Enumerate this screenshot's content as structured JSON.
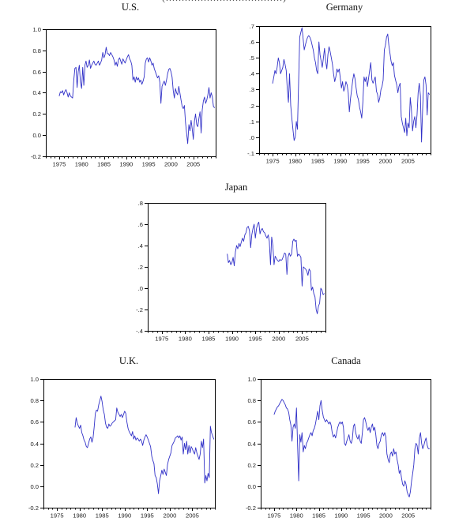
{
  "figure": {
    "top_caption_fragment": "(.....................................)"
  },
  "chart_data": [
    {
      "key": "us",
      "type": "line",
      "title": "U.S.",
      "ylim": [
        -0.2,
        1.0
      ],
      "yticks": [
        1.0,
        0.8,
        0.6,
        0.4,
        0.2,
        0.0,
        -0.2
      ],
      "ytick_labels": [
        "1.0",
        "0.8",
        "0.6",
        "0.4",
        "0.2",
        "0.0",
        "-0.2"
      ],
      "xlim": [
        1972,
        2010
      ],
      "xticks": [
        1975,
        1980,
        1985,
        1990,
        1995,
        2000,
        2005
      ],
      "xtick_labels": [
        "1975",
        "1980",
        "1985",
        "1990",
        "1995",
        "2000",
        "2005"
      ],
      "x_minor_step": 1,
      "grid": false,
      "line_color": "#3232c8",
      "series": {
        "name": "U.S.",
        "x_start": 1975.0,
        "dx": 0.25,
        "values": [
          0.37,
          0.41,
          0.4,
          0.42,
          0.38,
          0.41,
          0.43,
          0.4,
          0.36,
          0.4,
          0.37,
          0.36,
          0.35,
          0.52,
          0.63,
          0.64,
          0.45,
          0.6,
          0.66,
          0.5,
          0.44,
          0.64,
          0.47,
          0.66,
          0.7,
          0.64,
          0.66,
          0.71,
          0.63,
          0.66,
          0.68,
          0.7,
          0.67,
          0.66,
          0.68,
          0.7,
          0.66,
          0.68,
          0.71,
          0.78,
          0.73,
          0.76,
          0.83,
          0.77,
          0.77,
          0.75,
          0.78,
          0.76,
          0.74,
          0.71,
          0.66,
          0.69,
          0.65,
          0.71,
          0.73,
          0.7,
          0.67,
          0.72,
          0.7,
          0.68,
          0.71,
          0.74,
          0.76,
          0.72,
          0.7,
          0.66,
          0.52,
          0.55,
          0.5,
          0.55,
          0.52,
          0.54,
          0.5,
          0.52,
          0.48,
          0.51,
          0.55,
          0.68,
          0.72,
          0.73,
          0.69,
          0.73,
          0.7,
          0.66,
          0.68,
          0.63,
          0.6,
          0.57,
          0.54,
          0.56,
          0.5,
          0.3,
          0.46,
          0.49,
          0.51,
          0.47,
          0.52,
          0.58,
          0.62,
          0.63,
          0.6,
          0.55,
          0.42,
          0.35,
          0.44,
          0.4,
          0.38,
          0.46,
          0.4,
          0.33,
          0.27,
          0.25,
          0.28,
          0.12,
          0.02,
          -0.08,
          0.1,
          0.04,
          0.14,
          0.06,
          -0.04,
          0.13,
          0.2,
          0.1,
          0.08,
          0.16,
          0.22,
          0.02,
          0.24,
          0.32,
          0.36,
          0.3,
          0.33,
          0.38,
          0.45,
          0.35,
          0.4,
          0.36,
          0.27,
          0.26
        ]
      }
    },
    {
      "key": "germany",
      "type": "line",
      "title": "Germany",
      "ylim": [
        -0.1,
        0.7
      ],
      "yticks": [
        0.7,
        0.6,
        0.5,
        0.4,
        0.3,
        0.2,
        0.1,
        0.0,
        -0.1
      ],
      "ytick_labels": [
        ".7",
        ".6",
        ".5",
        ".4",
        ".3",
        ".2",
        ".1",
        ".0",
        "-.1"
      ],
      "xlim": [
        1972,
        2010
      ],
      "xticks": [
        1975,
        1980,
        1985,
        1990,
        1995,
        2000,
        2005
      ],
      "xtick_labels": [
        "1975",
        "1980",
        "1985",
        "1990",
        "1995",
        "2000",
        "2005"
      ],
      "x_minor_step": 1,
      "grid": false,
      "line_color": "#3232c8",
      "series": {
        "name": "Germany",
        "x_start": 1975.0,
        "dx": 0.25,
        "values": [
          0.34,
          0.38,
          0.42,
          0.4,
          0.44,
          0.5,
          0.47,
          0.4,
          0.42,
          0.44,
          0.49,
          0.46,
          0.42,
          0.3,
          0.22,
          0.4,
          0.2,
          0.12,
          0.05,
          -0.02,
          0.0,
          0.1,
          0.05,
          0.35,
          0.63,
          0.66,
          0.69,
          0.62,
          0.55,
          0.58,
          0.61,
          0.63,
          0.64,
          0.63,
          0.61,
          0.58,
          0.55,
          0.5,
          0.47,
          0.42,
          0.4,
          0.6,
          0.52,
          0.48,
          0.44,
          0.5,
          0.56,
          0.48,
          0.43,
          0.52,
          0.57,
          0.54,
          0.5,
          0.46,
          0.4,
          0.35,
          0.38,
          0.43,
          0.41,
          0.43,
          0.37,
          0.31,
          0.35,
          0.29,
          0.31,
          0.35,
          0.33,
          0.28,
          0.16,
          0.24,
          0.3,
          0.36,
          0.4,
          0.37,
          0.31,
          0.26,
          0.24,
          0.19,
          0.16,
          0.12,
          0.22,
          0.38,
          0.35,
          0.38,
          0.32,
          0.37,
          0.42,
          0.47,
          0.36,
          0.34,
          0.36,
          0.38,
          0.29,
          0.27,
          0.22,
          0.25,
          0.3,
          0.32,
          0.36,
          0.55,
          0.58,
          0.63,
          0.65,
          0.58,
          0.53,
          0.48,
          0.45,
          0.47,
          0.39,
          0.36,
          0.33,
          0.28,
          0.32,
          0.34,
          0.13,
          0.09,
          0.06,
          0.03,
          0.12,
          0.01,
          0.09,
          0.06,
          0.25,
          0.18,
          0.04,
          0.1,
          0.13,
          0.06,
          0.14,
          0.28,
          0.34,
          0.26,
          -0.03,
          0.18,
          0.36,
          0.38,
          0.33,
          0.14,
          0.28,
          0.27
        ]
      }
    },
    {
      "key": "japan",
      "type": "line",
      "title": "Japan",
      "ylim": [
        -0.4,
        0.8
      ],
      "yticks": [
        0.8,
        0.6,
        0.4,
        0.2,
        0.0,
        -0.2,
        -0.4
      ],
      "ytick_labels": [
        ".8",
        ".6",
        ".4",
        ".2",
        ".0",
        "-.2",
        "-.4"
      ],
      "xlim": [
        1972,
        2010
      ],
      "xticks": [
        1975,
        1980,
        1985,
        1990,
        1995,
        2000,
        2005
      ],
      "xtick_labels": [
        "1975",
        "1980",
        "1985",
        "1990",
        "1995",
        "2000",
        "2005"
      ],
      "x_minor_step": 1,
      "grid": false,
      "line_color": "#3232c8",
      "series": {
        "name": "Japan",
        "x_start": 1989.0,
        "dx": 0.25,
        "values": [
          0.32,
          0.24,
          0.26,
          0.22,
          0.24,
          0.29,
          0.21,
          0.34,
          0.4,
          0.37,
          0.42,
          0.39,
          0.43,
          0.47,
          0.44,
          0.5,
          0.52,
          0.57,
          0.58,
          0.54,
          0.38,
          0.5,
          0.56,
          0.6,
          0.47,
          0.56,
          0.6,
          0.62,
          0.51,
          0.55,
          0.56,
          0.53,
          0.52,
          0.49,
          0.47,
          0.5,
          0.44,
          0.22,
          0.48,
          0.4,
          0.22,
          0.3,
          0.28,
          0.26,
          0.25,
          0.27,
          0.26,
          0.27,
          0.3,
          0.33,
          0.32,
          0.13,
          0.29,
          0.33,
          0.3,
          0.32,
          0.44,
          0.46,
          0.44,
          0.45,
          0.3,
          0.32,
          0.31,
          0.29,
          0.02,
          0.2,
          0.19,
          0.18,
          0.16,
          0.12,
          0.18,
          0.16,
          -0.02,
          0.01,
          -0.05,
          -0.08,
          -0.2,
          -0.24,
          -0.17,
          -0.14,
          0.0,
          -0.02,
          -0.06,
          -0.05
        ]
      }
    },
    {
      "key": "uk",
      "type": "line",
      "title": "U.K.",
      "ylim": [
        -0.2,
        1.0
      ],
      "yticks": [
        1.0,
        0.8,
        0.6,
        0.4,
        0.2,
        0.0,
        -0.2
      ],
      "ytick_labels": [
        "1.0",
        "0.8",
        "0.6",
        "0.4",
        "0.2",
        "0.0",
        "-0.2"
      ],
      "xlim": [
        1972,
        2010
      ],
      "xticks": [
        1975,
        1980,
        1985,
        1990,
        1995,
        2000,
        2005
      ],
      "xtick_labels": [
        "1975",
        "1980",
        "1985",
        "1990",
        "1995",
        "2000",
        "2005"
      ],
      "x_minor_step": 1,
      "grid": false,
      "line_color": "#3232c8",
      "series": {
        "name": "U.K.",
        "x_start": 1979.0,
        "dx": 0.25,
        "values": [
          0.55,
          0.64,
          0.59,
          0.56,
          0.54,
          0.57,
          0.5,
          0.47,
          0.43,
          0.41,
          0.37,
          0.36,
          0.4,
          0.44,
          0.46,
          0.41,
          0.45,
          0.55,
          0.68,
          0.71,
          0.7,
          0.76,
          0.8,
          0.84,
          0.79,
          0.71,
          0.67,
          0.59,
          0.55,
          0.54,
          0.58,
          0.56,
          0.57,
          0.59,
          0.6,
          0.61,
          0.62,
          0.73,
          0.69,
          0.67,
          0.65,
          0.67,
          0.64,
          0.67,
          0.7,
          0.68,
          0.6,
          0.54,
          0.51,
          0.49,
          0.47,
          0.51,
          0.44,
          0.47,
          0.43,
          0.45,
          0.44,
          0.42,
          0.44,
          0.42,
          0.38,
          0.43,
          0.46,
          0.48,
          0.46,
          0.43,
          0.4,
          0.37,
          0.28,
          0.24,
          0.21,
          0.1,
          0.08,
          0.02,
          -0.07,
          0.05,
          0.1,
          0.15,
          0.11,
          0.16,
          0.13,
          0.1,
          0.2,
          0.25,
          0.28,
          0.31,
          0.38,
          0.4,
          0.42,
          0.45,
          0.46,
          0.47,
          0.45,
          0.47,
          0.43,
          0.46,
          0.3,
          0.4,
          0.34,
          0.42,
          0.3,
          0.38,
          0.31,
          0.37,
          0.35,
          0.32,
          0.3,
          0.36,
          0.31,
          0.28,
          0.25,
          0.3,
          0.42,
          0.36,
          0.44,
          0.03,
          0.1,
          0.05,
          0.12,
          0.08,
          0.56,
          0.5,
          0.47,
          0.44
        ]
      }
    },
    {
      "key": "canada",
      "type": "line",
      "title": "Canada",
      "ylim": [
        -0.2,
        1.0
      ],
      "yticks": [
        1.0,
        0.8,
        0.6,
        0.4,
        0.2,
        0.0,
        -0.2
      ],
      "ytick_labels": [
        "1.0",
        "0.8",
        "0.6",
        "0.4",
        "0.2",
        "0.0",
        "-0.2"
      ],
      "xlim": [
        1972,
        2010
      ],
      "xticks": [
        1975,
        1980,
        1985,
        1990,
        1995,
        2000,
        2005
      ],
      "xtick_labels": [
        "1975",
        "1980",
        "1985",
        "1990",
        "1995",
        "2000",
        "2005"
      ],
      "x_minor_step": 1,
      "grid": false,
      "line_color": "#3232c8",
      "series": {
        "name": "Canada",
        "x_start": 1975.0,
        "dx": 0.25,
        "values": [
          0.67,
          0.7,
          0.72,
          0.74,
          0.75,
          0.77,
          0.79,
          0.81,
          0.8,
          0.78,
          0.76,
          0.73,
          0.72,
          0.69,
          0.62,
          0.57,
          0.42,
          0.55,
          0.58,
          0.54,
          0.73,
          0.38,
          0.05,
          0.48,
          0.41,
          0.5,
          0.32,
          0.38,
          0.35,
          0.4,
          0.42,
          0.45,
          0.48,
          0.5,
          0.47,
          0.52,
          0.54,
          0.58,
          0.64,
          0.7,
          0.62,
          0.75,
          0.8,
          0.71,
          0.65,
          0.62,
          0.6,
          0.62,
          0.6,
          0.58,
          0.6,
          0.57,
          0.5,
          0.46,
          0.48,
          0.45,
          0.5,
          0.55,
          0.58,
          0.6,
          0.58,
          0.6,
          0.55,
          0.4,
          0.38,
          0.42,
          0.45,
          0.48,
          0.42,
          0.4,
          0.44,
          0.56,
          0.58,
          0.5,
          0.46,
          0.44,
          0.48,
          0.42,
          0.4,
          0.5,
          0.62,
          0.64,
          0.6,
          0.55,
          0.52,
          0.55,
          0.5,
          0.55,
          0.58,
          0.52,
          0.55,
          0.48,
          0.38,
          0.35,
          0.4,
          0.42,
          0.48,
          0.5,
          0.47,
          0.5,
          0.46,
          0.3,
          0.25,
          0.22,
          0.3,
          0.32,
          0.28,
          0.35,
          0.3,
          0.32,
          0.25,
          0.2,
          0.12,
          0.15,
          0.08,
          0.02,
          0.0,
          0.05,
          0.02,
          -0.05,
          -0.08,
          -0.1,
          -0.05,
          0.05,
          0.12,
          0.2,
          0.35,
          0.4,
          0.38,
          0.3,
          0.45,
          0.5,
          0.4,
          0.35,
          0.38,
          0.42,
          0.45,
          0.38,
          0.35,
          0.35
        ]
      }
    }
  ]
}
